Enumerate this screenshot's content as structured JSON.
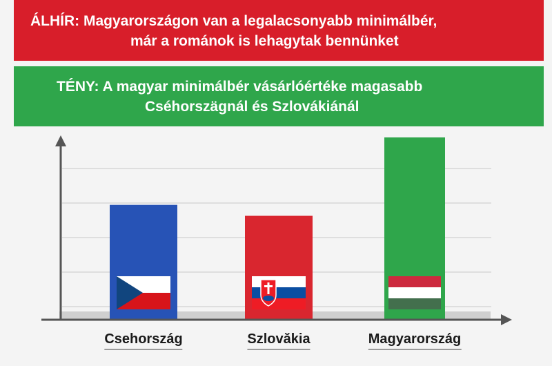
{
  "banners": {
    "fake": {
      "tag": "ÁLHÍR:",
      "line1": "Magyarországon van a legalacsonyabb minimálbér,",
      "line2": "már a románok is lehagytak bennünket",
      "color": "#d81e2a"
    },
    "fact": {
      "tag": "TÉNY:",
      "line1": "A magyar minimálbér vásárlóértéke magasabb",
      "line2": "Cséhorszägnál és Szlovákiánál",
      "color": "#2fa64b"
    }
  },
  "chart_data": {
    "type": "bar",
    "title": "",
    "xlabel": "",
    "ylabel": "",
    "categories": [
      "Csehország",
      "Szlovăkia",
      "Magyarország"
    ],
    "values": [
      63,
      57,
      100
    ],
    "value_unit": "relative bar height, percent of tallest (no axis scale printed)",
    "bar_colors": [
      "#2753b6",
      "#d9262f",
      "#2fa64b"
    ],
    "flags": [
      "czech-flag-icon",
      "slovakia-flag-icon",
      "hungary-flag-icon"
    ],
    "grid": true,
    "legend": "none"
  }
}
